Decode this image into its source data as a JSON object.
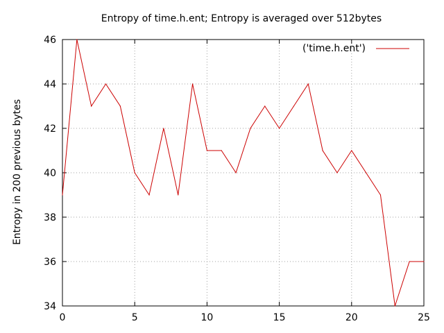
{
  "chart_data": {
    "type": "line",
    "title": "Entropy of time.h.ent; Entropy is averaged over 512bytes",
    "xlabel": "",
    "ylabel": "Entropy in 200 previous bytes",
    "xlim": [
      0,
      25
    ],
    "ylim": [
      34,
      46
    ],
    "xticks": [
      0,
      5,
      10,
      15,
      20,
      25
    ],
    "yticks": [
      34,
      36,
      38,
      40,
      42,
      44,
      46
    ],
    "grid": true,
    "legend_position": "top-right",
    "series": [
      {
        "name": "('time.h.ent')",
        "color": "#cc0000",
        "x": [
          0,
          1,
          2,
          3,
          4,
          5,
          6,
          7,
          8,
          9,
          10,
          11,
          12,
          13,
          14,
          15,
          16,
          17,
          18,
          19,
          20,
          21,
          22,
          23,
          24,
          25
        ],
        "y": [
          39,
          46,
          43,
          44,
          43,
          40,
          39,
          42,
          39,
          44,
          41,
          41,
          40,
          42,
          43,
          42,
          43,
          44,
          41,
          40,
          41,
          40,
          39,
          34,
          36,
          36
        ]
      }
    ]
  }
}
